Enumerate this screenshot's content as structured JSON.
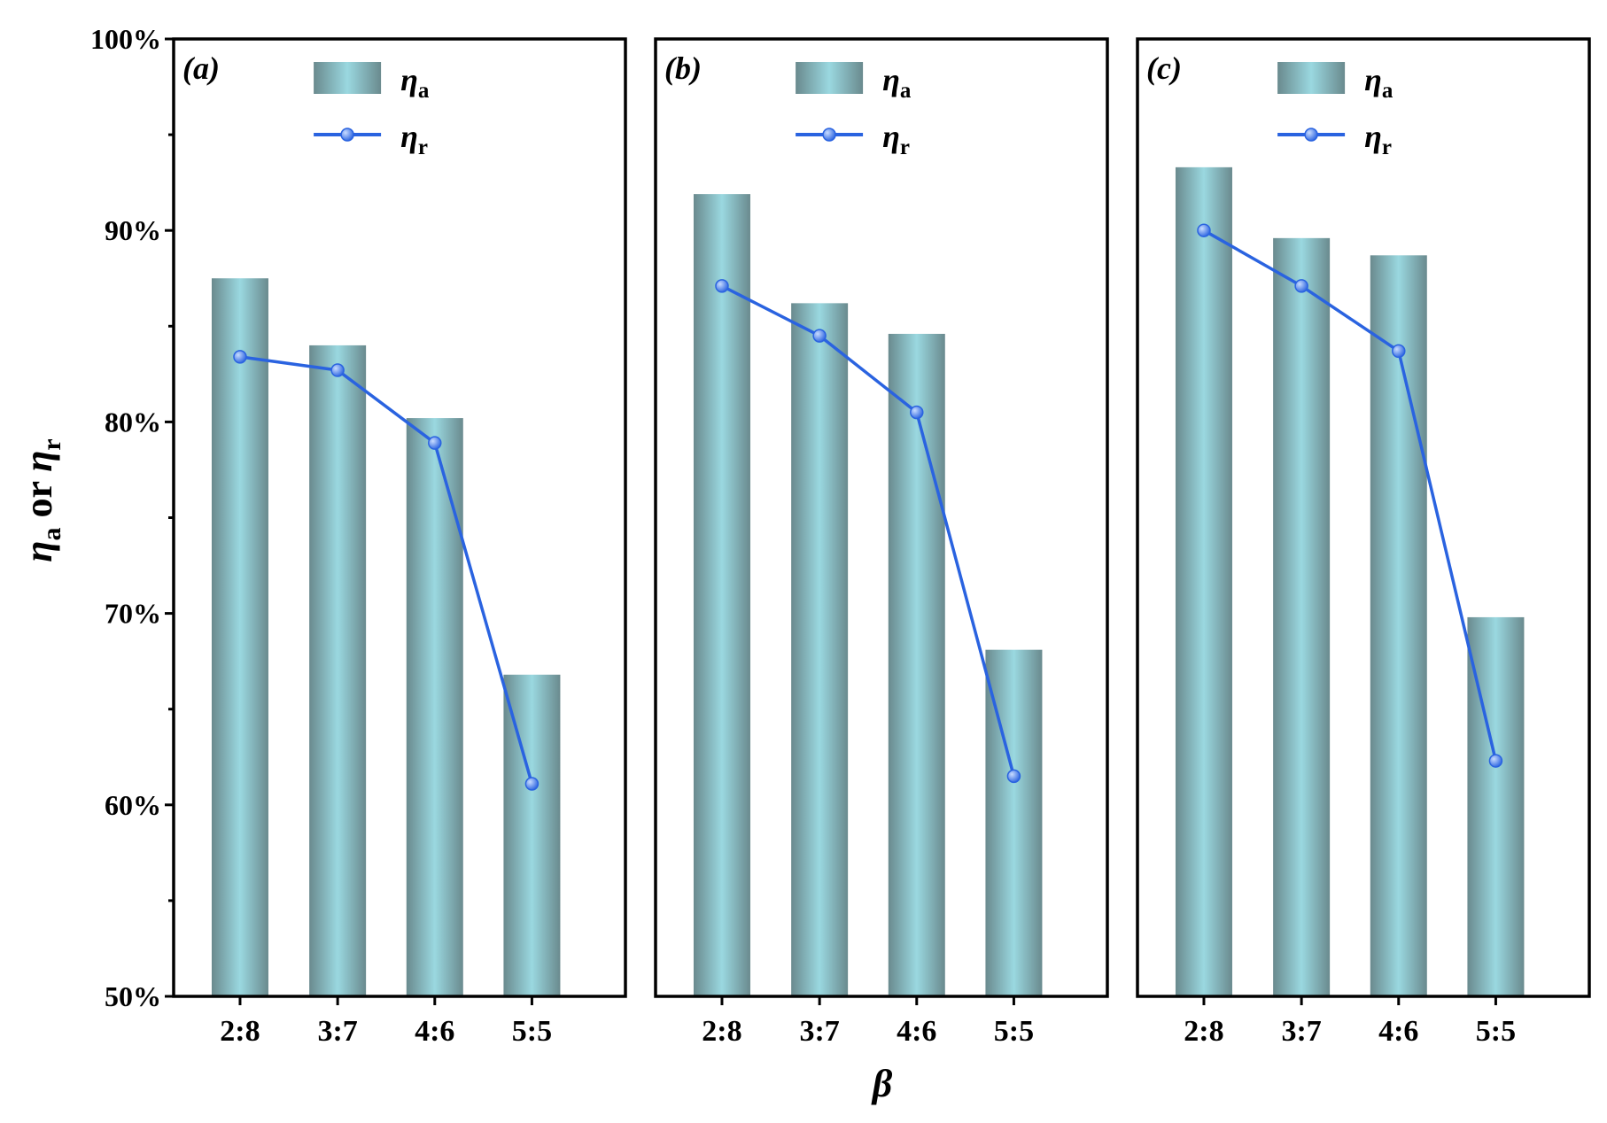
{
  "chart_data": {
    "type": "bar",
    "ylabel_parts": [
      "η",
      "a",
      " or ",
      "η",
      "r"
    ],
    "xlabel": "β",
    "ylim": [
      50,
      100
    ],
    "yticks": [
      "50%",
      "60%",
      "70%",
      "80%",
      "90%",
      "100%"
    ],
    "categories": [
      "2:8",
      "3:7",
      "4:6",
      "5:5"
    ],
    "legend": {
      "bar_symbol": "η",
      "bar_sub": "a",
      "line_symbol": "η",
      "line_sub": "r"
    },
    "panels": [
      {
        "label": "(a)",
        "series": [
          {
            "name": "η_a",
            "kind": "bar",
            "values": [
              87.5,
              84.0,
              80.2,
              66.8
            ]
          },
          {
            "name": "η_r",
            "kind": "line",
            "values": [
              83.4,
              82.7,
              78.9,
              61.1
            ]
          }
        ]
      },
      {
        "label": "(b)",
        "series": [
          {
            "name": "η_a",
            "kind": "bar",
            "values": [
              91.9,
              86.2,
              84.6,
              68.1
            ]
          },
          {
            "name": "η_r",
            "kind": "line",
            "values": [
              87.1,
              84.5,
              80.5,
              61.5
            ]
          }
        ]
      },
      {
        "label": "(c)",
        "series": [
          {
            "name": "η_a",
            "kind": "bar",
            "values": [
              93.3,
              89.6,
              88.7,
              69.8
            ]
          },
          {
            "name": "η_r",
            "kind": "line",
            "values": [
              90.0,
              87.1,
              83.7,
              62.3
            ]
          }
        ]
      }
    ],
    "colors": {
      "bar_edge": "#6a8a8e",
      "bar_center": "#9ad8e0",
      "line": "#2a63e0",
      "marker_light": "#c8dcff"
    }
  }
}
